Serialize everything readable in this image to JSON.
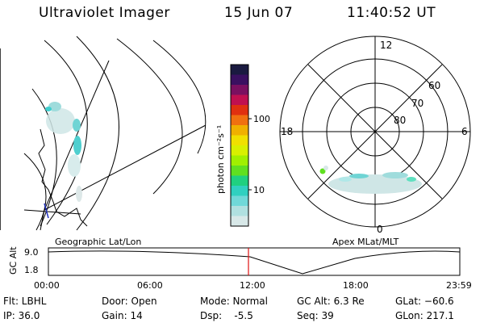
{
  "header": {
    "instrument": "Ultraviolet Imager",
    "date": "15 Jun 07",
    "time": "11:40:52 UT"
  },
  "colorbar": {
    "units_label": "photon cm⁻²s⁻¹",
    "ticks": [
      "100",
      "10"
    ],
    "colors": [
      "#1a1a40",
      "#3a1060",
      "#7a1060",
      "#c01050",
      "#e03010",
      "#f07010",
      "#f0b000",
      "#f0e000",
      "#d8f000",
      "#a0f000",
      "#60e020",
      "#20d080",
      "#30d0c0",
      "#70d8d8",
      "#b0e0e0",
      "#d8e8e8"
    ]
  },
  "polar": {
    "mlt_labels": {
      "top": "12",
      "left": "18",
      "right": "6",
      "bottom": "0"
    },
    "lat_labels": [
      "60",
      "70",
      "80"
    ]
  },
  "timeseries": {
    "left_title": "Geographic Lat/Lon",
    "right_title": "Apex MLat/MLT",
    "ylabel": "GC Alt",
    "y_ticks": [
      "9.0",
      "1.8"
    ],
    "x_ticks": [
      "00:00",
      "06:00",
      "12:00",
      "18:00",
      "23:59"
    ],
    "marker_color": "#e01010"
  },
  "info": {
    "flt": "Flt: LBHL",
    "ip": "IP: 36.0",
    "door": "Door: Open",
    "gain": "Gain: 14",
    "mode": "Mode: Normal",
    "dsp": "Dsp:    -5.5",
    "gcalt": "GC Alt: 6.3 Re",
    "seq": "Seq: 39",
    "glat": "GLat: −60.6",
    "glon": "GLon: 217.1"
  }
}
